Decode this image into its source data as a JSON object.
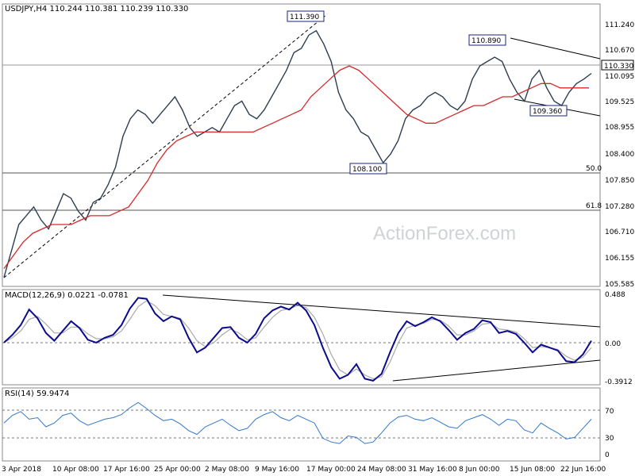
{
  "chart_data": [
    {
      "type": "line",
      "panel": "price",
      "title": "USDJPY,H4  110.244 110.381 110.239 110.330",
      "ylim": [
        105.585,
        111.6
      ],
      "y_ticks": [
        "111.240",
        "110.670",
        "110.095",
        "109.525",
        "108.955",
        "108.400",
        "107.850",
        "107.280",
        "106.710",
        "106.155",
        "105.585"
      ],
      "x_ticks": [
        "3 Apr 2018",
        "10 Apr 08:00",
        "17 Apr 16:00",
        "25 Apr 00:00",
        "2 May 08:00",
        "9 May 16:00",
        "17 May 00:00",
        "24 May 08:00",
        "31 May 16:00",
        "8 Jun 00:00",
        "15 Jun 08:00",
        "22 Jun 16:00"
      ],
      "current_price_label": "110.330",
      "current_price": 110.33,
      "levels": [
        {
          "label": "50.0",
          "value": 107.99
        },
        {
          "label": "61.8",
          "value": 107.25
        }
      ],
      "annotations": [
        {
          "text": "111.390",
          "value": 111.39
        },
        {
          "text": "108.100",
          "value": 108.1
        },
        {
          "text": "110.890",
          "value": 110.89
        },
        {
          "text": "109.360",
          "value": 109.36
        }
      ],
      "series": [
        {
          "values": [
            105.7,
            106.3,
            106.9,
            107.1,
            107.3,
            107.0,
            106.8,
            107.2,
            107.6,
            107.5,
            107.2,
            107.0,
            107.4,
            107.5,
            107.8,
            108.2,
            108.9,
            109.3,
            109.5,
            109.4,
            109.2,
            109.4,
            109.6,
            109.8,
            109.5,
            109.1,
            108.9,
            109.0,
            109.1,
            109.0,
            109.3,
            109.6,
            109.7,
            109.4,
            109.3,
            109.5,
            109.8,
            110.1,
            110.4,
            110.8,
            110.9,
            111.2,
            111.3,
            111.0,
            110.6,
            109.9,
            109.5,
            109.3,
            109.0,
            108.9,
            108.6,
            108.3,
            108.5,
            108.8,
            109.3,
            109.5,
            109.6,
            109.8,
            109.9,
            109.8,
            109.6,
            109.5,
            109.7,
            110.2,
            110.5,
            110.6,
            110.7,
            110.6,
            110.2,
            109.9,
            109.7,
            110.2,
            110.4,
            110.0,
            109.7,
            109.6,
            109.9,
            110.1,
            110.2,
            110.33
          ]
        },
        {
          "values": [
            105.9,
            106.2,
            106.5,
            106.7,
            106.8,
            106.9,
            106.9,
            106.9,
            107.0,
            107.1,
            107.1,
            107.1,
            107.2,
            107.3,
            107.6,
            107.9,
            108.3,
            108.6,
            108.8,
            108.9,
            109.0,
            109.0,
            109.0,
            109.0,
            109.0,
            109.0,
            109.0,
            109.1,
            109.2,
            109.3,
            109.4,
            109.5,
            109.8,
            110.0,
            110.2,
            110.4,
            110.5,
            110.4,
            110.2,
            110.0,
            109.8,
            109.6,
            109.4,
            109.3,
            109.2,
            109.2,
            109.3,
            109.4,
            109.5,
            109.6,
            109.6,
            109.7,
            109.8,
            109.8,
            109.9,
            110.0,
            110.1,
            110.1,
            110.0,
            110.0,
            110.0,
            110.0
          ]
        }
      ]
    },
    {
      "type": "line",
      "panel": "macd",
      "title": "MACD(12,26,9) 0.0221 -0.0781",
      "ylim": [
        -0.3912,
        0.488
      ],
      "y_ticks": [
        "0.488",
        "0.00",
        "-0.3912"
      ],
      "series": [
        {
          "values": [
            0.0,
            0.08,
            0.18,
            0.34,
            0.25,
            0.1,
            0.02,
            0.12,
            0.22,
            0.15,
            0.03,
            0.0,
            0.05,
            0.08,
            0.18,
            0.35,
            0.46,
            0.45,
            0.3,
            0.22,
            0.27,
            0.24,
            0.05,
            -0.1,
            -0.05,
            0.05,
            0.15,
            0.16,
            0.05,
            0.0,
            0.09,
            0.25,
            0.33,
            0.37,
            0.34,
            0.41,
            0.33,
            0.18,
            -0.05,
            -0.25,
            -0.37,
            -0.33,
            -0.22,
            -0.37,
            -0.39,
            -0.32,
            -0.1,
            0.1,
            0.22,
            0.17,
            0.21,
            0.26,
            0.22,
            0.13,
            0.03,
            0.1,
            0.14,
            0.23,
            0.21,
            0.1,
            0.12,
            0.09,
            0.0,
            -0.1,
            -0.02,
            -0.05,
            -0.08,
            -0.19,
            -0.2,
            -0.12,
            0.02
          ]
        },
        {
          "values": [
            0.0,
            0.05,
            0.12,
            0.24,
            0.27,
            0.19,
            0.1,
            0.1,
            0.16,
            0.16,
            0.09,
            0.04,
            0.04,
            0.06,
            0.12,
            0.24,
            0.37,
            0.43,
            0.38,
            0.29,
            0.27,
            0.25,
            0.15,
            0.02,
            -0.04,
            0.0,
            0.08,
            0.14,
            0.1,
            0.03,
            0.05,
            0.16,
            0.26,
            0.33,
            0.35,
            0.38,
            0.36,
            0.26,
            0.09,
            -0.12,
            -0.28,
            -0.33,
            -0.27,
            -0.33,
            -0.37,
            -0.35,
            -0.2,
            0.0,
            0.15,
            0.18,
            0.2,
            0.24,
            0.23,
            0.17,
            0.08,
            0.08,
            0.12,
            0.19,
            0.2,
            0.14,
            0.13,
            0.11,
            0.04,
            -0.05,
            -0.04,
            -0.05,
            -0.07,
            -0.14,
            -0.18,
            -0.15,
            -0.05
          ]
        }
      ]
    },
    {
      "type": "line",
      "panel": "rsi",
      "title": "RSI(14) 59.9474",
      "ylim": [
        0,
        100
      ],
      "y_ticks": [
        "70",
        "30",
        "0"
      ],
      "levels": [
        70,
        30
      ],
      "series": [
        {
          "values": [
            55,
            65,
            70,
            60,
            62,
            50,
            55,
            65,
            68,
            58,
            52,
            56,
            60,
            62,
            66,
            75,
            82,
            74,
            65,
            58,
            60,
            54,
            45,
            40,
            50,
            55,
            60,
            52,
            45,
            48,
            60,
            66,
            70,
            62,
            58,
            65,
            60,
            55,
            35,
            30,
            28,
            38,
            36,
            28,
            30,
            42,
            55,
            63,
            65,
            60,
            58,
            62,
            56,
            50,
            48,
            58,
            62,
            66,
            60,
            52,
            60,
            58,
            46,
            42,
            55,
            48,
            42,
            34,
            36,
            48,
            60
          ]
        }
      ]
    }
  ],
  "watermark": "ActionForex.com",
  "colors": {
    "price": "#2c3e50",
    "ma": "#d42a2a",
    "macd": "#0b0b8f",
    "signal": "#aaaaaa",
    "rsi": "#3377cc",
    "label_box": "#1a237e"
  }
}
